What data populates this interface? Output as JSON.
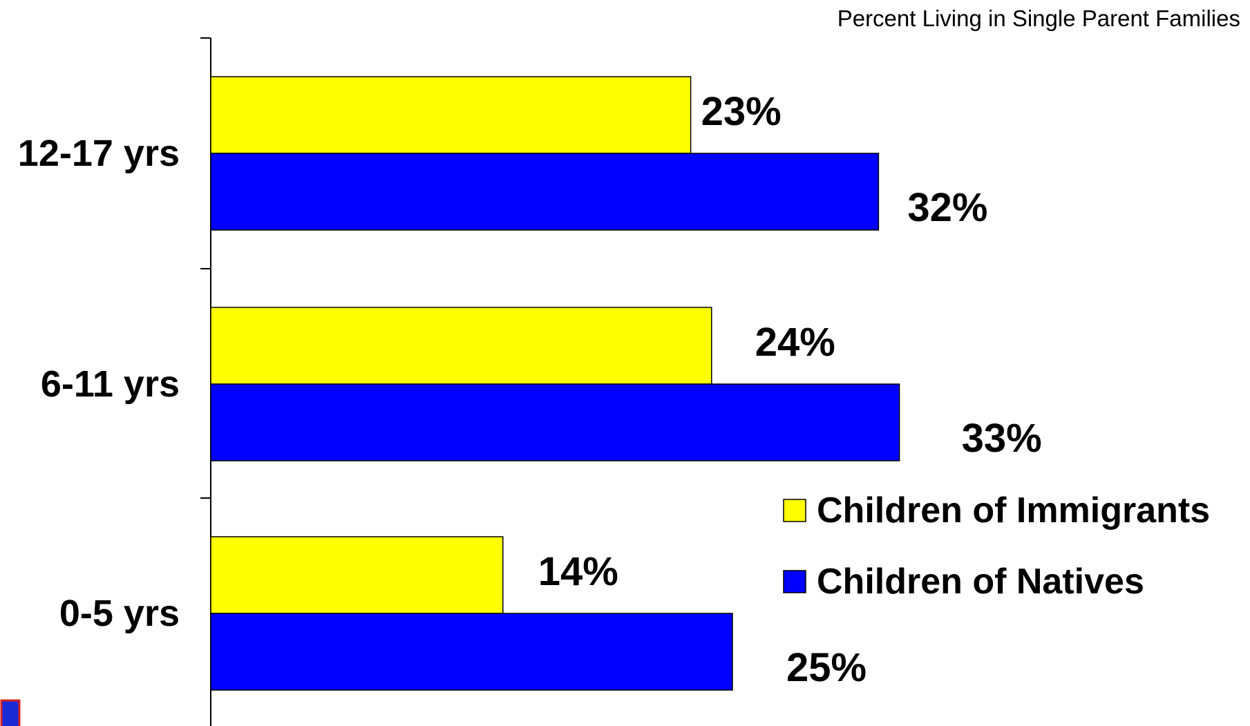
{
  "chart_data": {
    "type": "bar",
    "orientation": "horizontal",
    "title": "Percent Living in Single Parent Families",
    "categories": [
      "12-17 yrs",
      "6-11 yrs",
      "0-5 yrs"
    ],
    "series": [
      {
        "name": "Children of Immigrants",
        "values": [
          23,
          24,
          14
        ],
        "labels": [
          "23%",
          "24%",
          "14%"
        ],
        "color": "#FFFF00"
      },
      {
        "name": "Children of Natives",
        "values": [
          32,
          33,
          25
        ],
        "labels": [
          "32%",
          "33%",
          "25%"
        ],
        "color": "#0000FF"
      }
    ],
    "xlim": [
      0,
      50
    ],
    "grid": false,
    "legend": "right"
  }
}
